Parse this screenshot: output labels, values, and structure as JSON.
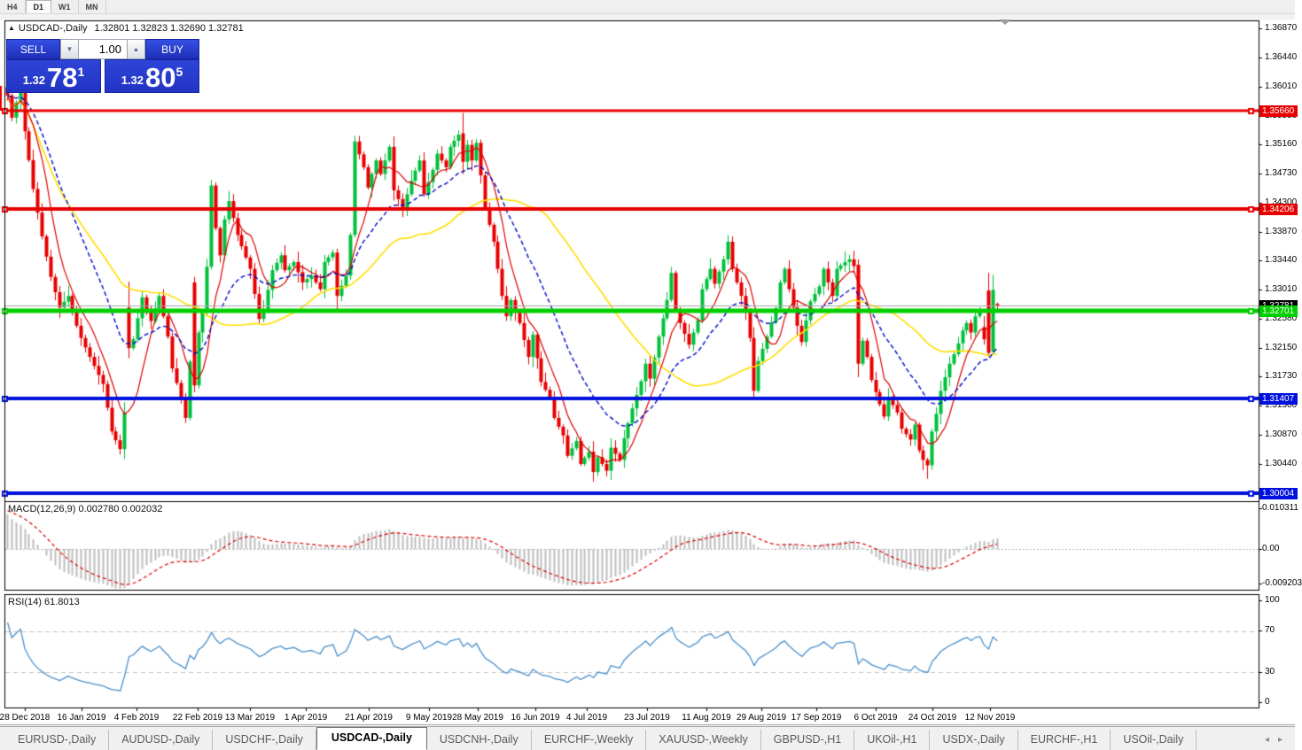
{
  "toolbar": {
    "buttons": [
      "H4",
      "D1",
      "W1",
      "MN"
    ],
    "active": "D1"
  },
  "chart": {
    "collapse_arrow": "▲",
    "symbol": "USDCAD-,Daily",
    "ohlc": "1.32801 1.32823 1.32690 1.32781",
    "trade_panel": {
      "sell_label": "SELL",
      "buy_label": "BUY",
      "volume": "1.00",
      "spin_down": "▼",
      "spin_up": "▲",
      "sell_small": "1.32",
      "sell_big": "78",
      "sell_sup": "1",
      "buy_small": "1.32",
      "buy_big": "80",
      "buy_sup": "5"
    },
    "price_scale_ticks": [
      "1.36870",
      "1.36440",
      "1.36010",
      "1.35580",
      "1.35160",
      "1.34730",
      "1.34300",
      "1.33870",
      "1.33440",
      "1.33010",
      "1.32580",
      "1.32150",
      "1.31730",
      "1.31300",
      "1.30870",
      "1.30440"
    ],
    "bid_label": {
      "text": "1.32781",
      "price": 1.32781,
      "bg": "#000000"
    }
  },
  "chart_data": {
    "type": "candlestick",
    "title": "USDCAD-,Daily",
    "bars": 229,
    "x_axis_dates": [
      {
        "x": 28,
        "label": "28 Dec 2018"
      },
      {
        "x": 92,
        "label": "16 Jan 2019"
      },
      {
        "x": 154,
        "label": "4 Feb 2019"
      },
      {
        "x": 223,
        "label": "22 Feb 2019"
      },
      {
        "x": 282,
        "label": "13 Mar 2019"
      },
      {
        "x": 345,
        "label": "1 Apr 2019"
      },
      {
        "x": 416,
        "label": "21 Apr 2019"
      },
      {
        "x": 484,
        "label": "9 May 2019"
      },
      {
        "x": 539,
        "label": "28 May 2019"
      },
      {
        "x": 604,
        "label": "16 Jun 2019"
      },
      {
        "x": 662,
        "label": "4 Jul 2019"
      },
      {
        "x": 730,
        "label": "23 Jul 2019"
      },
      {
        "x": 797,
        "label": "11 Aug 2019"
      },
      {
        "x": 859,
        "label": "29 Aug 2019"
      },
      {
        "x": 921,
        "label": "17 Sep 2019"
      },
      {
        "x": 988,
        "label": "6 Oct 2019"
      },
      {
        "x": 1052,
        "label": "24 Oct 2019"
      },
      {
        "x": 1117,
        "label": "12 Nov 2019"
      }
    ],
    "ylim": [
      1.29904,
      1.36988
    ],
    "close_waypoints": [
      [
        0,
        1.3588
      ],
      [
        1,
        1.3555
      ],
      [
        3,
        1.36
      ],
      [
        4,
        1.3535
      ],
      [
        6,
        1.345
      ],
      [
        8,
        1.338
      ],
      [
        10,
        1.332
      ],
      [
        12,
        1.3275
      ],
      [
        14,
        1.3292
      ],
      [
        16,
        1.3248
      ],
      [
        17,
        1.323
      ],
      [
        19,
        1.3202
      ],
      [
        22,
        1.3162
      ],
      [
        24,
        1.3092
      ],
      [
        26,
        1.3066
      ],
      [
        27,
        1.312
      ],
      [
        28,
        1.3215
      ],
      [
        29,
        1.3228
      ],
      [
        31,
        1.329
      ],
      [
        33,
        1.3255
      ],
      [
        35,
        1.3292
      ],
      [
        37,
        1.3232
      ],
      [
        38,
        1.3185
      ],
      [
        40,
        1.3142
      ],
      [
        41,
        1.3112
      ],
      [
        42,
        1.3195
      ],
      [
        43,
        1.316
      ],
      [
        44,
        1.3238
      ],
      [
        45,
        1.327
      ],
      [
        46,
        1.3335
      ],
      [
        47,
        1.3455
      ],
      [
        48,
        1.3392
      ],
      [
        49,
        1.3352
      ],
      [
        50,
        1.3405
      ],
      [
        51,
        1.3432
      ],
      [
        53,
        1.3382
      ],
      [
        56,
        1.3332
      ],
      [
        58,
        1.3258
      ],
      [
        59,
        1.3272
      ],
      [
        61,
        1.333
      ],
      [
        63,
        1.3352
      ],
      [
        64,
        1.333
      ],
      [
        66,
        1.3342
      ],
      [
        68,
        1.3312
      ],
      [
        70,
        1.3322
      ],
      [
        72,
        1.3302
      ],
      [
        73,
        1.3342
      ],
      [
        75,
        1.3356
      ],
      [
        76,
        1.3292
      ],
      [
        78,
        1.3322
      ],
      [
        79,
        1.3382
      ],
      [
        80,
        1.352
      ],
      [
        82,
        1.3482
      ],
      [
        83,
        1.3452
      ],
      [
        85,
        1.3492
      ],
      [
        86,
        1.3472
      ],
      [
        88,
        1.3512
      ],
      [
        89,
        1.3448
      ],
      [
        91,
        1.3422
      ],
      [
        93,
        1.3462
      ],
      [
        95,
        1.3492
      ],
      [
        96,
        1.3442
      ],
      [
        98,
        1.3478
      ],
      [
        99,
        1.3502
      ],
      [
        101,
        1.3482
      ],
      [
        102,
        1.3512
      ],
      [
        104,
        1.353
      ],
      [
        105,
        1.349
      ],
      [
        106,
        1.3515
      ],
      [
        107,
        1.3492
      ],
      [
        108,
        1.3518
      ],
      [
        110,
        1.3422
      ],
      [
        112,
        1.3372
      ],
      [
        113,
        1.3332
      ],
      [
        114,
        1.3292
      ],
      [
        115,
        1.3262
      ],
      [
        116,
        1.3286
      ],
      [
        117,
        1.3268
      ],
      [
        118,
        1.3252
      ],
      [
        120,
        1.3202
      ],
      [
        121,
        1.3235
      ],
      [
        123,
        1.3165
      ],
      [
        125,
        1.3142
      ],
      [
        126,
        1.3112
      ],
      [
        128,
        1.3086
      ],
      [
        129,
        1.3056
      ],
      [
        131,
        1.3078
      ],
      [
        132,
        1.3044
      ],
      [
        134,
        1.3062
      ],
      [
        135,
        1.3032
      ],
      [
        136,
        1.3054
      ],
      [
        138,
        1.3034
      ],
      [
        139,
        1.3068
      ],
      [
        141,
        1.305
      ],
      [
        142,
        1.3082
      ],
      [
        144,
        1.3126
      ],
      [
        146,
        1.3166
      ],
      [
        147,
        1.3192
      ],
      [
        148,
        1.317
      ],
      [
        150,
        1.3232
      ],
      [
        152,
        1.3286
      ],
      [
        153,
        1.3326
      ],
      [
        154,
        1.3272
      ],
      [
        155,
        1.3252
      ],
      [
        157,
        1.322
      ],
      [
        159,
        1.3256
      ],
      [
        160,
        1.3302
      ],
      [
        162,
        1.3332
      ],
      [
        163,
        1.331
      ],
      [
        165,
        1.3346
      ],
      [
        166,
        1.3372
      ],
      [
        167,
        1.3332
      ],
      [
        169,
        1.3292
      ],
      [
        170,
        1.327
      ],
      [
        171,
        1.323
      ],
      [
        172,
        1.3152
      ],
      [
        173,
        1.3196
      ],
      [
        175,
        1.3232
      ],
      [
        177,
        1.3274
      ],
      [
        178,
        1.3312
      ],
      [
        179,
        1.3332
      ],
      [
        180,
        1.3302
      ],
      [
        182,
        1.3248
      ],
      [
        183,
        1.3224
      ],
      [
        184,
        1.3256
      ],
      [
        185,
        1.3284
      ],
      [
        187,
        1.3306
      ],
      [
        188,
        1.3332
      ],
      [
        189,
        1.3312
      ],
      [
        190,
        1.3292
      ],
      [
        191,
        1.3332
      ],
      [
        193,
        1.3342
      ],
      [
        194,
        1.3346
      ],
      [
        195,
        1.3336
      ],
      [
        196,
        1.3192
      ],
      [
        197,
        1.3226
      ],
      [
        198,
        1.3202
      ],
      [
        199,
        1.3168
      ],
      [
        201,
        1.3132
      ],
      [
        202,
        1.3114
      ],
      [
        203,
        1.3142
      ],
      [
        205,
        1.312
      ],
      [
        206,
        1.3096
      ],
      [
        208,
        1.308
      ],
      [
        209,
        1.3102
      ],
      [
        210,
        1.3064
      ],
      [
        211,
        1.305
      ],
      [
        212,
        1.3042
      ],
      [
        213,
        1.3092
      ],
      [
        214,
        1.3118
      ],
      [
        215,
        1.3152
      ],
      [
        216,
        1.3172
      ],
      [
        217,
        1.3192
      ],
      [
        218,
        1.3206
      ],
      [
        219,
        1.3222
      ],
      [
        220,
        1.3241
      ],
      [
        221,
        1.3252
      ],
      [
        222,
        1.3238
      ],
      [
        223,
        1.3262
      ],
      [
        224,
        1.3268
      ],
      [
        225,
        1.3228
      ],
      [
        226,
        1.3208
      ],
      [
        227,
        1.3301
      ],
      [
        228,
        1.32781
      ]
    ],
    "candle_overrides": {
      "28": {
        "o": 1.3275,
        "h": 1.3313,
        "l": 1.32,
        "c": 1.3215
      },
      "43": {
        "o": 1.3312,
        "h": 1.332,
        "l": 1.315,
        "c": 1.316
      },
      "105": {
        "o": 1.3532,
        "h": 1.3562,
        "l": 1.3472,
        "c": 1.349
      },
      "196": {
        "o": 1.3338,
        "h": 1.3346,
        "l": 1.3172,
        "c": 1.3192
      },
      "225": {
        "o": 1.3246,
        "h": 1.3262,
        "l": 1.322,
        "c": 1.3228
      },
      "226": {
        "o": 1.33,
        "h": 1.3326,
        "l": 1.3202,
        "c": 1.3208
      },
      "227": {
        "o": 1.321,
        "h": 1.3323,
        "l": 1.3205,
        "c": 1.3301
      },
      "228": {
        "o": 1.32801,
        "h": 1.32823,
        "l": 1.3269,
        "c": 1.32781
      }
    },
    "wick_overrides": {
      "3": {
        "h": 1.3602
      },
      "47": {
        "h": 1.3462
      },
      "76": {
        "l": 1.327
      },
      "80": {
        "h": 1.3528
      },
      "135": {
        "l": 1.3018
      },
      "166": {
        "h": 1.3382
      },
      "172": {
        "l": 1.3141
      },
      "212": {
        "l": 1.3022
      }
    },
    "hlines": [
      {
        "price": 1.3566,
        "label": "1.35660",
        "color": "#e80000",
        "width": 3
      },
      {
        "price": 1.34206,
        "label": "1.34206",
        "color": "#e80000",
        "width": 4
      },
      {
        "price": 1.32701,
        "label": "1.32701",
        "color": "#00ce00",
        "width": 5
      },
      {
        "price": 1.31407,
        "label": "1.31407",
        "color": "#0010dd",
        "width": 4
      },
      {
        "price": 1.30004,
        "label": "1.30004",
        "color": "#0010dd",
        "width": 4
      }
    ],
    "current_price": 1.32781,
    "moving_averages": [
      {
        "name": "fast",
        "type": "sma",
        "period": 7,
        "color": "#dd0000",
        "style": "solid"
      },
      {
        "name": "medium",
        "type": "ema",
        "period": 20,
        "color": "#0008cc",
        "style": "dashed"
      },
      {
        "name": "slow",
        "type": "sma",
        "period": 45,
        "color": "#ffdf00",
        "style": "solid"
      }
    ],
    "colors": {
      "bull": "#00c13b",
      "bear": "#e80000"
    }
  },
  "macd_panel": {
    "label": "MACD(12,26,9)",
    "value_main": "0.002780",
    "value_signal": "0.002032",
    "params": {
      "fast": 12,
      "slow": 26,
      "signal": 9
    },
    "histogram_color": "#bdbdbd",
    "signal_color": "#dd0000",
    "scale": [
      {
        "label": "0.010311",
        "y": 568
      },
      {
        "label": "0.00",
        "y": 614
      },
      {
        "label": "-0.009203",
        "y": 653
      }
    ]
  },
  "rsi_panel": {
    "label": "RSI(14)",
    "value": "61.8013",
    "period": 14,
    "line_color": "#4a90cc",
    "levels": [
      70,
      30
    ],
    "scale": [
      {
        "label": "100",
        "y": 672
      },
      {
        "label": "70",
        "y": 706
      },
      {
        "label": "30",
        "y": 753
      },
      {
        "label": "0",
        "y": 787
      }
    ]
  },
  "tabs": {
    "items": [
      "EURUSD-,Daily",
      "AUDUSD-,Daily",
      "USDCHF-,Daily",
      "USDCAD-,Daily",
      "USDCNH-,Daily",
      "EURCHF-,Weekly",
      "XAUUSD-,Weekly",
      "GBPUSD-,H1",
      "UKOil-,H1",
      "USDX-,Daily",
      "EURCHF-,H1",
      "USOil-,Daily"
    ],
    "active": "USDCAD-,Daily",
    "scroll_left": "◂",
    "scroll_right": "▸"
  }
}
